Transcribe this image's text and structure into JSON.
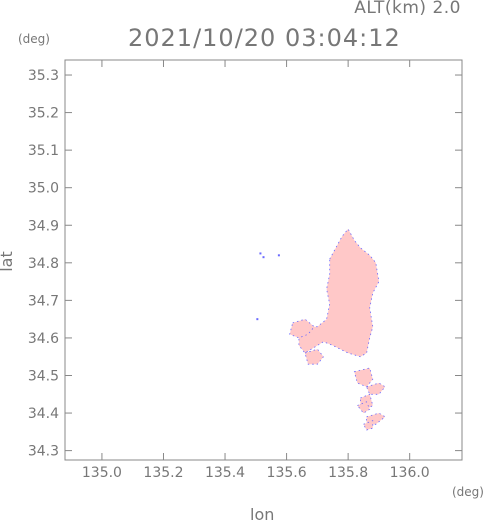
{
  "header": {
    "altitude_label": "ALT(km) 2.0",
    "timestamp": "2021/10/20 03:04:12"
  },
  "chart_data": {
    "type": "heatmap",
    "xlabel": "lon",
    "ylabel": "lat",
    "x_unit": "(deg)",
    "y_unit": "(deg)",
    "xlim": [
      134.88,
      136.17
    ],
    "ylim": [
      34.275,
      35.34
    ],
    "x_ticks": [
      {
        "value": 135.0,
        "label": "135.0"
      },
      {
        "value": 135.2,
        "label": "135.2"
      },
      {
        "value": 135.4,
        "label": "135.4"
      },
      {
        "value": 135.6,
        "label": "135.6"
      },
      {
        "value": 135.8,
        "label": "135.8"
      },
      {
        "value": 136.0,
        "label": "136.0"
      }
    ],
    "y_ticks": [
      {
        "value": 34.3,
        "label": "34.3"
      },
      {
        "value": 34.4,
        "label": "34.4"
      },
      {
        "value": 34.5,
        "label": "34.5"
      },
      {
        "value": 34.6,
        "label": "34.6"
      },
      {
        "value": 34.7,
        "label": "34.7"
      },
      {
        "value": 34.8,
        "label": "34.8"
      },
      {
        "value": 34.9,
        "label": "34.9"
      },
      {
        "value": 35.0,
        "label": "35.0"
      },
      {
        "value": 35.1,
        "label": "35.1"
      },
      {
        "value": 35.2,
        "label": "35.2"
      },
      {
        "value": 35.3,
        "label": "35.3"
      }
    ],
    "colors": {
      "fill": "#ffc8c8",
      "edge": "#6a6aff"
    },
    "regions": [
      {
        "name": "main-body",
        "points": [
          [
            135.74,
            34.81
          ],
          [
            135.78,
            34.87
          ],
          [
            135.8,
            34.89
          ],
          [
            135.82,
            34.86
          ],
          [
            135.84,
            34.84
          ],
          [
            135.87,
            34.82
          ],
          [
            135.89,
            34.8
          ],
          [
            135.9,
            34.75
          ],
          [
            135.88,
            34.72
          ],
          [
            135.87,
            34.68
          ],
          [
            135.88,
            34.63
          ],
          [
            135.87,
            34.6
          ],
          [
            135.86,
            34.56
          ],
          [
            135.84,
            34.55
          ],
          [
            135.8,
            34.56
          ],
          [
            135.75,
            34.58
          ],
          [
            135.72,
            34.59
          ],
          [
            135.68,
            34.57
          ],
          [
            135.66,
            34.56
          ],
          [
            135.64,
            34.58
          ],
          [
            135.64,
            34.61
          ],
          [
            135.66,
            34.63
          ],
          [
            135.7,
            34.63
          ],
          [
            135.73,
            34.65
          ],
          [
            135.74,
            34.69
          ],
          [
            135.73,
            34.73
          ],
          [
            135.74,
            34.77
          ]
        ]
      },
      {
        "name": "west-lobe",
        "points": [
          [
            135.62,
            34.64
          ],
          [
            135.66,
            34.65
          ],
          [
            135.69,
            34.63
          ],
          [
            135.67,
            34.61
          ],
          [
            135.64,
            34.6
          ],
          [
            135.61,
            34.61
          ]
        ]
      },
      {
        "name": "southwest-patch",
        "points": [
          [
            135.66,
            34.56
          ],
          [
            135.7,
            34.57
          ],
          [
            135.72,
            34.55
          ],
          [
            135.7,
            34.53
          ],
          [
            135.67,
            34.53
          ]
        ]
      },
      {
        "name": "south-patch-1",
        "points": [
          [
            135.82,
            34.51
          ],
          [
            135.87,
            34.52
          ],
          [
            135.88,
            34.49
          ],
          [
            135.86,
            34.47
          ],
          [
            135.83,
            34.48
          ]
        ]
      },
      {
        "name": "south-patch-2",
        "points": [
          [
            135.86,
            34.47
          ],
          [
            135.9,
            34.48
          ],
          [
            135.92,
            34.47
          ],
          [
            135.9,
            34.45
          ],
          [
            135.87,
            34.45
          ]
        ]
      },
      {
        "name": "south-patch-3",
        "points": [
          [
            135.84,
            34.44
          ],
          [
            135.87,
            34.45
          ],
          [
            135.88,
            34.42
          ],
          [
            135.86,
            34.41
          ],
          [
            135.84,
            34.42
          ]
        ]
      },
      {
        "name": "south-patch-4",
        "points": [
          [
            135.83,
            34.42
          ],
          [
            135.86,
            34.43
          ],
          [
            135.87,
            34.41
          ],
          [
            135.85,
            34.4
          ]
        ]
      },
      {
        "name": "south-patch-5",
        "points": [
          [
            135.86,
            34.39
          ],
          [
            135.9,
            34.4
          ],
          [
            135.92,
            34.39
          ],
          [
            135.89,
            34.37
          ],
          [
            135.86,
            34.37
          ]
        ]
      },
      {
        "name": "south-tail",
        "points": [
          [
            135.85,
            34.37
          ],
          [
            135.88,
            34.38
          ],
          [
            135.88,
            34.36
          ],
          [
            135.86,
            34.355
          ]
        ]
      }
    ],
    "specks": [
      [
        135.525,
        34.815
      ],
      [
        135.515,
        34.825
      ],
      [
        135.575,
        34.82
      ],
      [
        135.505,
        34.65
      ]
    ],
    "grid": false
  }
}
